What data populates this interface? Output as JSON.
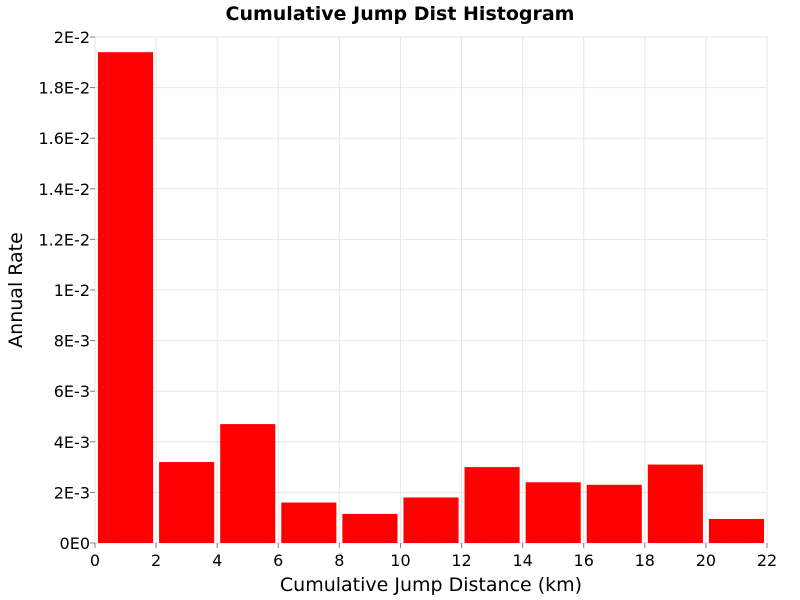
{
  "chart_data": {
    "type": "bar",
    "title": "Cumulative Jump Dist Histogram",
    "xlabel": "Cumulative Jump Distance (km)",
    "ylabel": "Annual Rate",
    "xlim": [
      0,
      22
    ],
    "ylim": [
      0,
      0.02
    ],
    "grid": true,
    "bar_color": "#ff0000",
    "x_ticks": [
      0,
      2,
      4,
      6,
      8,
      10,
      12,
      14,
      16,
      18,
      20,
      22
    ],
    "x_tick_labels": [
      "0",
      "2",
      "4",
      "6",
      "8",
      "10",
      "12",
      "14",
      "16",
      "18",
      "20",
      "22"
    ],
    "y_ticks": [
      0,
      0.002,
      0.004,
      0.006,
      0.008,
      0.01,
      0.012,
      0.014,
      0.016,
      0.018,
      0.02
    ],
    "y_tick_labels": [
      "0E0",
      "2E-3",
      "4E-3",
      "6E-3",
      "8E-3",
      "1E-2",
      "1.2E-2",
      "1.4E-2",
      "1.6E-2",
      "1.8E-2",
      "2E-2"
    ],
    "bins": [
      {
        "x_start": 0,
        "x_end": 2,
        "value": 0.0194
      },
      {
        "x_start": 2,
        "x_end": 4,
        "value": 0.0032
      },
      {
        "x_start": 4,
        "x_end": 6,
        "value": 0.0047
      },
      {
        "x_start": 6,
        "x_end": 8,
        "value": 0.0016
      },
      {
        "x_start": 8,
        "x_end": 10,
        "value": 0.00115
      },
      {
        "x_start": 10,
        "x_end": 12,
        "value": 0.0018
      },
      {
        "x_start": 12,
        "x_end": 14,
        "value": 0.003
      },
      {
        "x_start": 14,
        "x_end": 16,
        "value": 0.0024
      },
      {
        "x_start": 16,
        "x_end": 18,
        "value": 0.0023
      },
      {
        "x_start": 18,
        "x_end": 20,
        "value": 0.0031
      },
      {
        "x_start": 20,
        "x_end": 22,
        "value": 0.00095
      }
    ]
  }
}
